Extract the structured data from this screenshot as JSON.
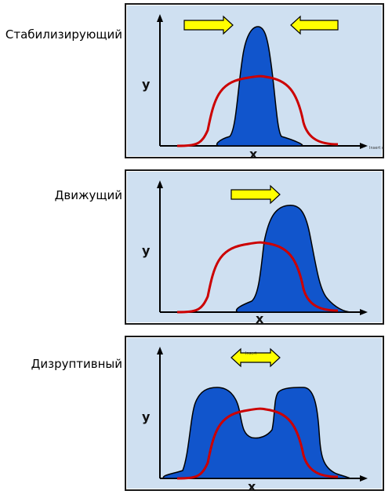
{
  "panels": [
    {
      "id": "stabilizing",
      "label": "Стабилизирующий",
      "y_axis": "y",
      "x_axis": "x",
      "arrows": "inward",
      "corner_note": "Insert c"
    },
    {
      "id": "directional",
      "label": "Движущий",
      "y_axis": "y",
      "x_axis": "x",
      "arrows": "right"
    },
    {
      "id": "disruptive",
      "label": "Дизруптивный",
      "y_axis": "y",
      "x_axis": "x",
      "arrows": "both",
      "arrow_note": "Insert"
    }
  ],
  "colors": {
    "panel_bg": "#cfe0f1",
    "distribution_fill": "#1155cc",
    "original_curve": "#cc0000",
    "arrow_fill": "#ffff00",
    "axis": "#000000"
  }
}
